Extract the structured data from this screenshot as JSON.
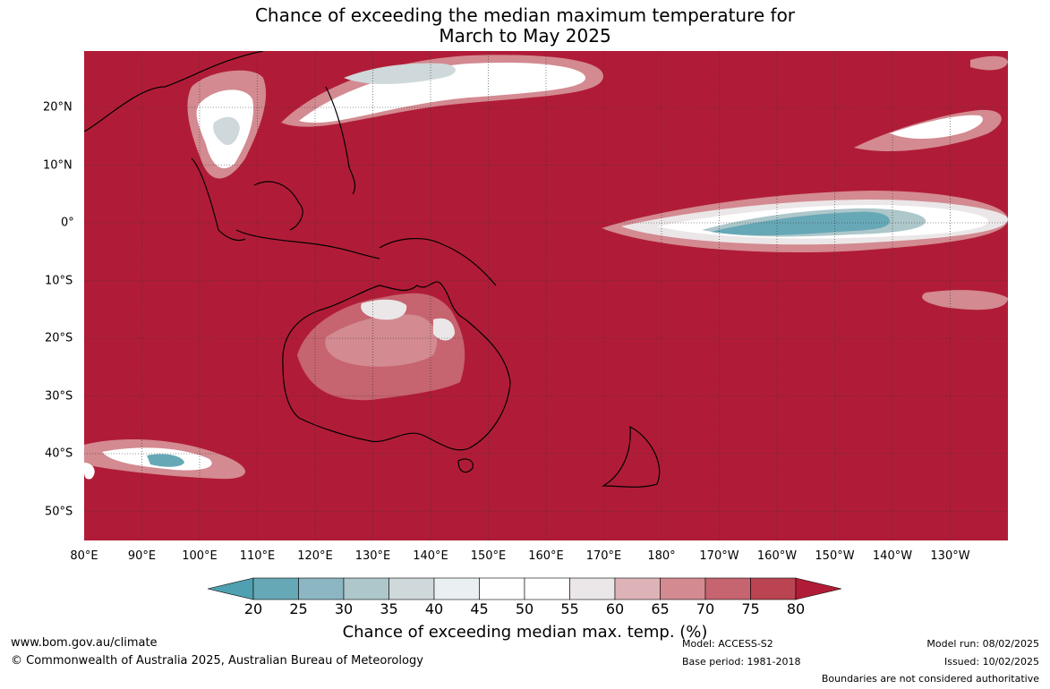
{
  "title": {
    "line1": "Chance of exceeding the median maximum temperature for",
    "line2": "March to May 2025"
  },
  "map": {
    "background_color": "#b01c37",
    "longitude_labels": [
      "80°E",
      "90°E",
      "100°E",
      "110°E",
      "120°E",
      "130°E",
      "140°E",
      "150°E",
      "160°E",
      "170°E",
      "180°",
      "170°W",
      "160°W",
      "150°W",
      "140°W",
      "130°W"
    ],
    "latitude_labels": [
      "20°N",
      "10°N",
      "0°",
      "10°S",
      "20°S",
      "30°S",
      "40°S",
      "50°S"
    ]
  },
  "colorbar": {
    "ticks": [
      "20",
      "25",
      "30",
      "35",
      "40",
      "45",
      "50",
      "55",
      "60",
      "65",
      "70",
      "75",
      "80"
    ],
    "colors": [
      "#67a8b7",
      "#8cb6c1",
      "#adc7ca",
      "#cfd8da",
      "#eaf0f1",
      "#ffffff",
      "#ffffff",
      "#ebe7e8",
      "#deb3b8",
      "#d38a91",
      "#c6646f",
      "#ba4451"
    ],
    "low_extend_color": "#4fa0b0",
    "high_extend_color": "#b01c37",
    "label": "Chance of exceeding median max. temp. (%)"
  },
  "footer": {
    "url": "www.bom.gov.au/climate",
    "copyright": "© Commonwealth of Australia 2025, Australian Bureau of Meteorology",
    "model": "Model: ACCESS-S2",
    "base_period": "Base period: 1981-2018",
    "model_run": "Model run: 08/02/2025",
    "issued": "Issued: 10/02/2025",
    "boundaries": "Boundaries are not considered authoritative"
  }
}
